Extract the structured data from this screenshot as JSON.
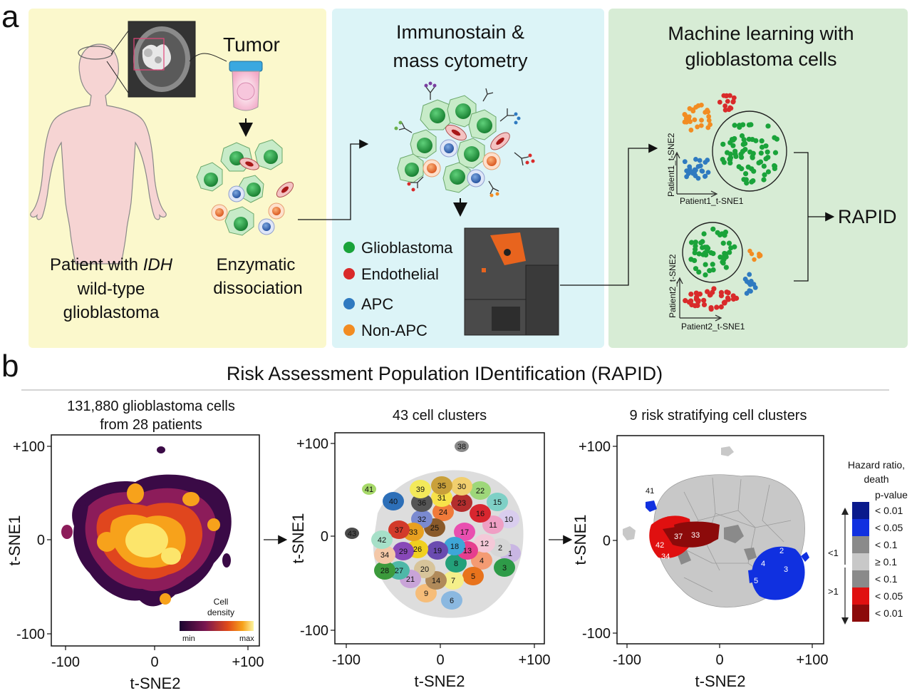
{
  "panel_a": {
    "label": "a",
    "patient_line1_pre": "Patient with ",
    "patient_line1_italic": "IDH",
    "patient_line2": "wild-type",
    "patient_line3": "glioblastoma",
    "tumor": "Tumor",
    "enzymatic_line1": "Enzymatic",
    "enzymatic_line2": "dissociation",
    "immuno_line1": "Immunostain &",
    "immuno_line2": "mass cytometry",
    "legend": [
      {
        "label": "Glioblastoma",
        "color": "#1aa33a"
      },
      {
        "label": "Endothelial",
        "color": "#d92a2a"
      },
      {
        "label": "APC",
        "color": "#2f7ac0"
      },
      {
        "label": "Non-APC",
        "color": "#f28c22"
      }
    ],
    "ml_line1": "Machine learning with",
    "ml_line2": "glioblastoma cells",
    "p1_xlabel": "Patient1_t-SNE1",
    "p1_ylabel": "Patient1_t-SNE2",
    "p2_xlabel": "Patient2_t-SNE1",
    "p2_ylabel": "Patient2_t-SNE2",
    "rapid": "RAPID"
  },
  "panel_b": {
    "label": "b",
    "title": "Risk Assessment Population IDentification (RAPID)",
    "plot1_title_line1": "131,880 glioblastoma cells",
    "plot1_title_line2": "from 28 patients",
    "plot2_title": "43 cell clusters",
    "plot3_title": "9 risk stratifying cell clusters",
    "xlabel": "t-SNE2",
    "ylabel": "t-SNE1",
    "xticks": [
      "-100",
      "0",
      "+100"
    ],
    "yticks": [
      "+100",
      "0",
      "-100"
    ],
    "density_legend_line1": "Cell",
    "density_legend_line2": "density",
    "density_min": "min",
    "density_max": "max",
    "hazard_title_line1": "Hazard ratio,",
    "hazard_title_line2": "death",
    "hazard_pvalue": "p-value",
    "hazard_lt1": "<1",
    "hazard_gt1": ">1",
    "hazard_rows": [
      {
        "label": "< 0.01",
        "color": "#0a1a8c"
      },
      {
        "label": "< 0.05",
        "color": "#1030e0"
      },
      {
        "label": "< 0.1",
        "color": "#8a8a8a"
      },
      {
        "label": "≥ 0.1",
        "color": "#c8c8c8"
      },
      {
        "label": "< 0.1",
        "color": "#8a8a8a"
      },
      {
        "label": "< 0.05",
        "color": "#e01010"
      },
      {
        "label": "< 0.01",
        "color": "#8c0a0a"
      }
    ],
    "clusters": [
      {
        "id": "1",
        "color": "#c9b6e3"
      },
      {
        "id": "2",
        "color": "#d6d6d6"
      },
      {
        "id": "3",
        "color": "#2e9b48"
      },
      {
        "id": "4",
        "color": "#f49b73"
      },
      {
        "id": "5",
        "color": "#e8731c"
      },
      {
        "id": "6",
        "color": "#8bb8e0"
      },
      {
        "id": "7",
        "color": "#f5ef8a"
      },
      {
        "id": "8",
        "color": "#23a07a"
      },
      {
        "id": "9",
        "color": "#f6bd79"
      },
      {
        "id": "10",
        "color": "#d9cdee"
      },
      {
        "id": "11",
        "color": "#ef9fc4"
      },
      {
        "id": "12",
        "color": "#f4c9d8"
      },
      {
        "id": "13",
        "color": "#e63e8f"
      },
      {
        "id": "14",
        "color": "#b08a5a"
      },
      {
        "id": "15",
        "color": "#7fd0c6"
      },
      {
        "id": "16",
        "color": "#d8262f"
      },
      {
        "id": "17",
        "color": "#e94fb0"
      },
      {
        "id": "18",
        "color": "#3ea6d8"
      },
      {
        "id": "19",
        "color": "#6a4bb0"
      },
      {
        "id": "20",
        "color": "#d7c49a"
      },
      {
        "id": "21",
        "color": "#c9a4d8"
      },
      {
        "id": "22",
        "color": "#9ed77a"
      },
      {
        "id": "23",
        "color": "#b32d2d"
      },
      {
        "id": "24",
        "color": "#f07a3a"
      },
      {
        "id": "25",
        "color": "#8a5a2a"
      },
      {
        "id": "26",
        "color": "#f0d020"
      },
      {
        "id": "27",
        "color": "#4fb8a8"
      },
      {
        "id": "28",
        "color": "#3c9a3c"
      },
      {
        "id": "29",
        "color": "#8848b8"
      },
      {
        "id": "30",
        "color": "#f1cf6e"
      },
      {
        "id": "31",
        "color": "#f7e24a"
      },
      {
        "id": "32",
        "color": "#7a8ad0"
      },
      {
        "id": "33",
        "color": "#e8a020"
      },
      {
        "id": "34",
        "color": "#f4c8a8"
      },
      {
        "id": "35",
        "color": "#c9a03a"
      },
      {
        "id": "36",
        "color": "#555555"
      },
      {
        "id": "37",
        "color": "#d23a2a"
      },
      {
        "id": "38",
        "color": "#8a8a8a"
      },
      {
        "id": "39",
        "color": "#f3e95a"
      },
      {
        "id": "40",
        "color": "#2d6fb8"
      },
      {
        "id": "41",
        "color": "#a7d96a"
      },
      {
        "id": "42",
        "color": "#a6e0c8"
      },
      {
        "id": "43",
        "color": "#4a4a4a"
      }
    ]
  }
}
